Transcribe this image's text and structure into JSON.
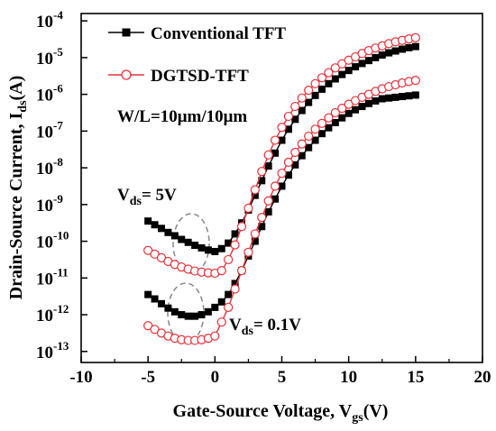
{
  "chart_data": {
    "type": "line",
    "xlabel": {
      "main": "Gate-Source Voltage, V",
      "sub": "gs",
      "tail": "(V)"
    },
    "ylabel": {
      "main": "Drain-Source Current, I",
      "sub": "ds",
      "tail": "(A)"
    },
    "xlim": [
      -10,
      20
    ],
    "ylim_log10": [
      -13.3,
      -3.8
    ],
    "x_ticks": [
      {
        "value": -10,
        "label": "-10"
      },
      {
        "value": -5,
        "label": "-5"
      },
      {
        "value": 0,
        "label": "0"
      },
      {
        "value": 5,
        "label": "5"
      },
      {
        "value": 10,
        "label": "10"
      },
      {
        "value": 15,
        "label": "15"
      },
      {
        "value": 20,
        "label": "20"
      }
    ],
    "y_ticks": [
      {
        "value": -13,
        "base": "10",
        "exp": "-13"
      },
      {
        "value": -12,
        "base": "10",
        "exp": "-12"
      },
      {
        "value": -11,
        "base": "10",
        "exp": "-11"
      },
      {
        "value": -10,
        "base": "10",
        "exp": "-10"
      },
      {
        "value": -9,
        "base": "10",
        "exp": "-9"
      },
      {
        "value": -8,
        "base": "10",
        "exp": "-8"
      },
      {
        "value": -7,
        "base": "10",
        "exp": "-7"
      },
      {
        "value": -6,
        "base": "10",
        "exp": "-6"
      },
      {
        "value": -5,
        "base": "10",
        "exp": "-5"
      },
      {
        "value": -4,
        "base": "10",
        "exp": "-4"
      }
    ],
    "y_scale": "log",
    "grid": false,
    "x": [
      -5,
      -4.5,
      -4,
      -3.5,
      -3,
      -2.5,
      -2,
      -1.5,
      -1,
      -0.5,
      0,
      0.5,
      1,
      1.5,
      2,
      2.5,
      3,
      3.5,
      4,
      4.5,
      5,
      5.5,
      6,
      6.5,
      7,
      7.5,
      8,
      8.5,
      9,
      9.5,
      10,
      10.5,
      11,
      11.5,
      12,
      12.5,
      13,
      13.5,
      14,
      14.5,
      15
    ],
    "series": [
      {
        "name": "Conventional TFT",
        "condition": "Vds = 5V",
        "marker": "square",
        "color": "#000000",
        "log10_values": [
          -9.45,
          -9.55,
          -9.65,
          -9.76,
          -9.85,
          -9.95,
          -10.03,
          -10.11,
          -10.18,
          -10.24,
          -10.28,
          -10.2,
          -10.05,
          -9.8,
          -9.5,
          -9.15,
          -8.75,
          -8.35,
          -7.95,
          -7.6,
          -7.25,
          -6.95,
          -6.68,
          -6.44,
          -6.22,
          -6.03,
          -5.86,
          -5.71,
          -5.58,
          -5.46,
          -5.35,
          -5.25,
          -5.16,
          -5.08,
          -5.0,
          -4.93,
          -4.87,
          -4.82,
          -4.77,
          -4.73,
          -4.7
        ]
      },
      {
        "name": "DGTSD-TFT",
        "condition": "Vds = 5V",
        "marker": "circle",
        "color": "#e8303a",
        "log10_values": [
          -10.25,
          -10.35,
          -10.45,
          -10.55,
          -10.63,
          -10.7,
          -10.76,
          -10.81,
          -10.84,
          -10.86,
          -10.87,
          -10.8,
          -10.5,
          -10.1,
          -9.6,
          -9.1,
          -8.6,
          -8.1,
          -7.65,
          -7.25,
          -6.9,
          -6.6,
          -6.33,
          -6.1,
          -5.89,
          -5.71,
          -5.55,
          -5.41,
          -5.28,
          -5.17,
          -5.07,
          -4.98,
          -4.89,
          -4.81,
          -4.74,
          -4.68,
          -4.62,
          -4.57,
          -4.53,
          -4.49,
          -4.46
        ]
      },
      {
        "name": "Conventional TFT",
        "condition": "Vds = 0.1V",
        "marker": "square",
        "color": "#000000",
        "log10_values": [
          -11.45,
          -11.57,
          -11.7,
          -11.82,
          -11.92,
          -12.0,
          -12.04,
          -12.04,
          -12.0,
          -11.92,
          -11.8,
          -11.65,
          -11.45,
          -11.15,
          -10.8,
          -10.4,
          -10.0,
          -9.6,
          -9.2,
          -8.85,
          -8.5,
          -8.2,
          -7.92,
          -7.67,
          -7.45,
          -7.25,
          -7.07,
          -6.91,
          -6.77,
          -6.64,
          -6.52,
          -6.42,
          -6.33,
          -6.25,
          -6.18,
          -6.12,
          -6.1,
          -6.08,
          -6.06,
          -6.04,
          -6.02
        ]
      },
      {
        "name": "DGTSD-TFT",
        "condition": "Vds = 0.1V",
        "marker": "circle",
        "color": "#e8303a",
        "log10_values": [
          -12.3,
          -12.4,
          -12.5,
          -12.58,
          -12.64,
          -12.68,
          -12.7,
          -12.7,
          -12.68,
          -12.64,
          -12.58,
          -12.2,
          -11.8,
          -11.3,
          -10.8,
          -10.3,
          -9.8,
          -9.35,
          -8.9,
          -8.5,
          -8.15,
          -7.85,
          -7.58,
          -7.35,
          -7.14,
          -6.95,
          -6.79,
          -6.64,
          -6.5,
          -6.38,
          -6.27,
          -6.17,
          -6.08,
          -6.0,
          -5.92,
          -5.85,
          -5.79,
          -5.74,
          -5.69,
          -5.65,
          -5.62
        ]
      }
    ],
    "legend": {
      "placement": "top-left",
      "entries": [
        {
          "label": "Conventional TFT",
          "marker": "square",
          "color": "#000000"
        },
        {
          "label": "DGTSD-TFT",
          "marker": "circle",
          "color": "#e8303a"
        }
      ]
    },
    "annotations": {
      "wl": "W/L=10μm/10μm",
      "vds_high": {
        "main": "V",
        "sub": "ds",
        "tail": "= 5V"
      },
      "vds_low": {
        "main": "V",
        "sub": "ds",
        "tail": "= 0.1V"
      }
    }
  }
}
